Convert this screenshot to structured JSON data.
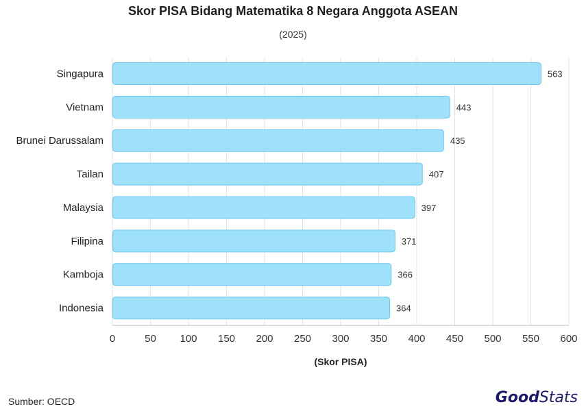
{
  "header": {
    "title": "Skor PISA Bidang Matematika 8 Negara Anggota ASEAN",
    "subtitle": "(2025)"
  },
  "footer": {
    "source": "Sumber: OECD",
    "brand_bold": "Good",
    "brand_light": "Stats"
  },
  "colors": {
    "bar_fill": "#9fe0fb",
    "bar_stroke": "#6cc8f0",
    "grid": "#e3e3e3",
    "axis": "#bdbdbd",
    "brand": "#1d1a6e"
  },
  "chart_data": {
    "type": "bar",
    "orientation": "horizontal",
    "categories": [
      "Singapura",
      "Vietnam",
      "Brunei Darussalam",
      "Tailan",
      "Malaysia",
      "Filipina",
      "Kamboja",
      "Indonesia"
    ],
    "values": [
      563,
      443,
      435,
      407,
      397,
      371,
      366,
      364
    ],
    "xlabel": "(Skor PISA)",
    "ylabel": "",
    "xlim": [
      0,
      600
    ],
    "xticks": [
      0,
      50,
      100,
      150,
      200,
      250,
      300,
      350,
      400,
      450,
      500,
      550,
      600
    ],
    "grid": true,
    "data_labels": true
  }
}
